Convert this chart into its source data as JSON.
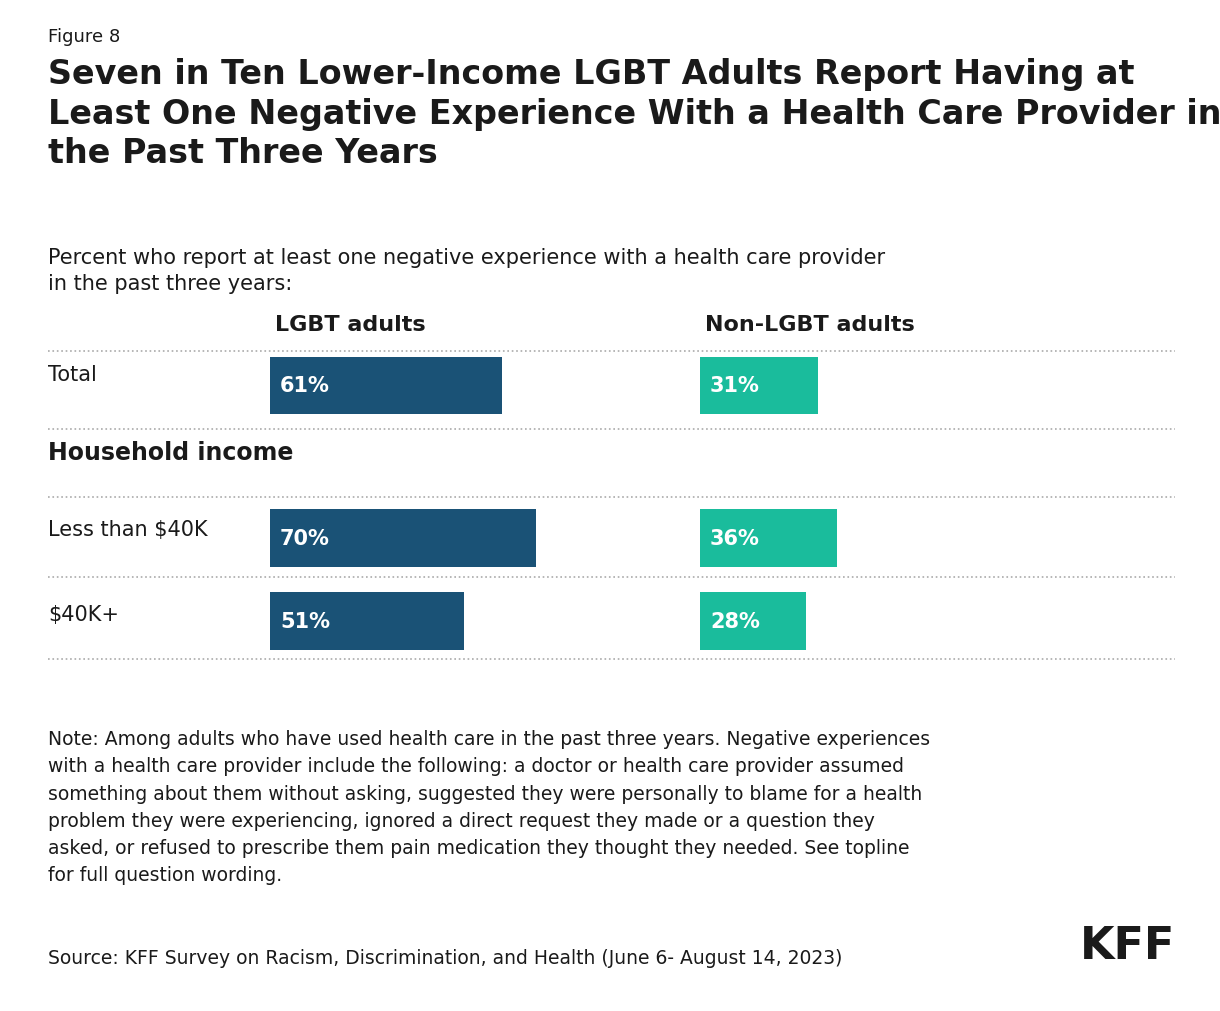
{
  "figure_label": "Figure 8",
  "title_line1": "Seven in Ten Lower-Income LGBT Adults Report Having at",
  "title_line2": "Least One Negative Experience With a Health Care Provider in",
  "title_line3": "the Past Three Years",
  "subtitle_line1": "Percent who report at least one negative experience with a health care provider",
  "subtitle_line2": "in the past three years:",
  "col_header_lgbt": "LGBT adults",
  "col_header_nonlgbt": "Non-LGBT adults",
  "categories": [
    "Total",
    "Household income",
    "Less than $40K",
    "$40K+"
  ],
  "is_section_header": [
    false,
    true,
    false,
    false
  ],
  "lgbt_values": [
    61,
    null,
    70,
    51
  ],
  "nonlgbt_values": [
    31,
    null,
    36,
    28
  ],
  "lgbt_color": "#1a5276",
  "nonlgbt_color": "#1abc9c",
  "max_value": 100,
  "note_text": "Note: Among adults who have used health care in the past three years. Negative experiences\nwith a health care provider include the following: a doctor or health care provider assumed\nsomething about them without asking, suggested they were personally to blame for a health\nproblem they were experiencing, ignored a direct request they made or a question they\nasked, or refused to prescribe them pain medication they thought they needed. See topline\nfor full question wording.",
  "source_text": "Source: KFF Survey on Racism, Discrimination, and Health (June 6- August 14, 2023)",
  "kff_text": "KFF",
  "background_color": "#ffffff",
  "text_color": "#1a1a1a",
  "divider_color": "#aaaaaa",
  "label_fontsize": 15,
  "bar_label_fontsize": 15,
  "col_header_fontsize": 16,
  "section_header_fontsize": 17,
  "note_fontsize": 13.5,
  "title_fontsize": 24,
  "figure_label_fontsize": 13
}
